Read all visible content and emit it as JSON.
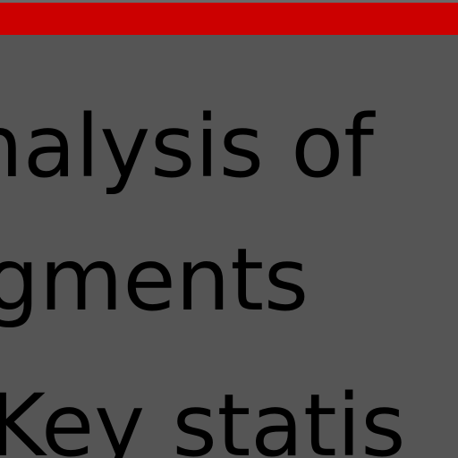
{
  "colors": {
    "background": "#555555",
    "accent_bar": "#cc0000",
    "text": "#000000"
  },
  "slide": {
    "lines": [
      "nalysis of",
      "gments",
      "Key statis"
    ]
  }
}
